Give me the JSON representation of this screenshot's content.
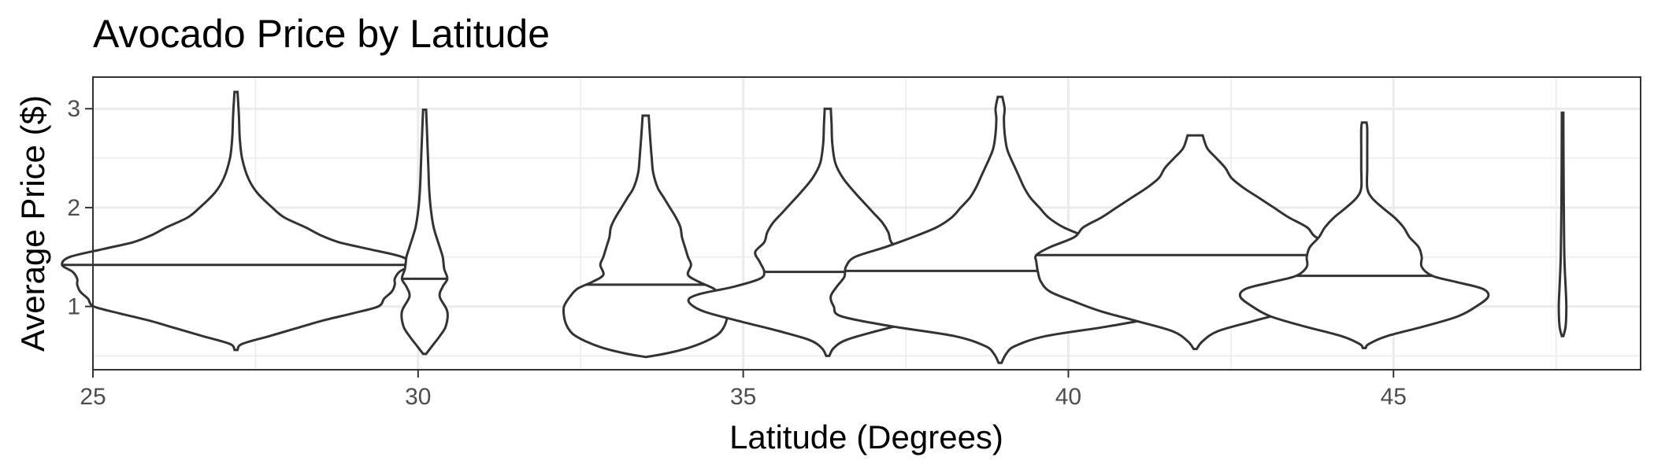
{
  "chart_data": {
    "type": "violin",
    "title": "Avocado Price by Latitude",
    "xlabel": "Latitude (Degrees)",
    "ylabel": "Average Price ($)",
    "xlim": [
      25,
      48.8
    ],
    "ylim": [
      0.36,
      3.32
    ],
    "x_ticks": [
      25,
      30,
      35,
      40,
      45
    ],
    "y_ticks": [
      1,
      2,
      3
    ],
    "grid": true,
    "line_color": "#333333",
    "violins": [
      {
        "latitude": 27.2,
        "median": 1.42,
        "min": 0.56,
        "max": 3.17,
        "profile": [
          [
            0.56,
            0.01
          ],
          [
            0.62,
            0.04
          ],
          [
            0.7,
            0.22
          ],
          [
            0.78,
            0.4
          ],
          [
            0.86,
            0.58
          ],
          [
            0.93,
            0.77
          ],
          [
            1.0,
            0.94
          ],
          [
            1.08,
            0.98
          ],
          [
            1.15,
            1.03
          ],
          [
            1.22,
            1.05
          ],
          [
            1.28,
            1.05
          ],
          [
            1.35,
            1.08
          ],
          [
            1.42,
            1.15
          ],
          [
            1.5,
            1.1
          ],
          [
            1.58,
            0.88
          ],
          [
            1.65,
            0.68
          ],
          [
            1.72,
            0.56
          ],
          [
            1.8,
            0.46
          ],
          [
            1.9,
            0.32
          ],
          [
            2.0,
            0.24
          ],
          [
            2.15,
            0.14
          ],
          [
            2.3,
            0.08
          ],
          [
            2.5,
            0.04
          ],
          [
            2.7,
            0.025
          ],
          [
            2.9,
            0.02
          ],
          [
            3.05,
            0.015
          ],
          [
            3.17,
            0.01
          ]
        ]
      },
      {
        "latitude": 30.1,
        "median": 1.28,
        "min": 0.52,
        "max": 2.99,
        "profile": [
          [
            0.52,
            0.01
          ],
          [
            0.6,
            0.05
          ],
          [
            0.7,
            0.1
          ],
          [
            0.8,
            0.14
          ],
          [
            0.95,
            0.15
          ],
          [
            1.1,
            0.1
          ],
          [
            1.2,
            0.12
          ],
          [
            1.28,
            0.15
          ],
          [
            1.38,
            0.13
          ],
          [
            1.5,
            0.12
          ],
          [
            1.6,
            0.1
          ],
          [
            1.8,
            0.06
          ],
          [
            2.0,
            0.04
          ],
          [
            2.2,
            0.03
          ],
          [
            2.4,
            0.025
          ],
          [
            2.6,
            0.02
          ],
          [
            2.8,
            0.015
          ],
          [
            2.99,
            0.01
          ]
        ]
      },
      {
        "latitude": 33.5,
        "median": 1.22,
        "min": 0.49,
        "max": 2.93,
        "profile": [
          [
            0.49,
            0.0
          ],
          [
            0.52,
            0.12
          ],
          [
            0.58,
            0.28
          ],
          [
            0.65,
            0.4
          ],
          [
            0.72,
            0.48
          ],
          [
            0.8,
            0.52
          ],
          [
            0.9,
            0.54
          ],
          [
            1.0,
            0.54
          ],
          [
            1.1,
            0.5
          ],
          [
            1.18,
            0.45
          ],
          [
            1.25,
            0.35
          ],
          [
            1.32,
            0.28
          ],
          [
            1.42,
            0.3
          ],
          [
            1.5,
            0.28
          ],
          [
            1.6,
            0.26
          ],
          [
            1.7,
            0.24
          ],
          [
            1.8,
            0.23
          ],
          [
            1.9,
            0.2
          ],
          [
            2.0,
            0.16
          ],
          [
            2.1,
            0.12
          ],
          [
            2.2,
            0.08
          ],
          [
            2.35,
            0.05
          ],
          [
            2.5,
            0.04
          ],
          [
            2.7,
            0.03
          ],
          [
            2.93,
            0.02
          ]
        ]
      },
      {
        "latitude": 36.3,
        "median": 1.35,
        "min": 0.5,
        "max": 3.0,
        "profile": [
          [
            0.5,
            0.01
          ],
          [
            0.58,
            0.04
          ],
          [
            0.66,
            0.12
          ],
          [
            0.75,
            0.32
          ],
          [
            0.85,
            0.58
          ],
          [
            0.95,
            0.82
          ],
          [
            1.05,
            0.92
          ],
          [
            1.12,
            0.86
          ],
          [
            1.2,
            0.62
          ],
          [
            1.28,
            0.45
          ],
          [
            1.35,
            0.42
          ],
          [
            1.45,
            0.45
          ],
          [
            1.55,
            0.48
          ],
          [
            1.65,
            0.42
          ],
          [
            1.75,
            0.4
          ],
          [
            1.85,
            0.36
          ],
          [
            1.95,
            0.3
          ],
          [
            2.05,
            0.24
          ],
          [
            2.15,
            0.18
          ],
          [
            2.3,
            0.1
          ],
          [
            2.45,
            0.05
          ],
          [
            2.65,
            0.03
          ],
          [
            2.85,
            0.025
          ],
          [
            3.0,
            0.02
          ]
        ]
      },
      {
        "latitude": 38.95,
        "median": 1.36,
        "min": 0.43,
        "max": 3.12,
        "profile": [
          [
            0.43,
            0.01
          ],
          [
            0.52,
            0.04
          ],
          [
            0.6,
            0.1
          ],
          [
            0.7,
            0.3
          ],
          [
            0.8,
            0.72
          ],
          [
            0.9,
            1.05
          ],
          [
            1.0,
            1.1
          ],
          [
            1.1,
            1.12
          ],
          [
            1.2,
            1.08
          ],
          [
            1.3,
            1.03
          ],
          [
            1.4,
            1.02
          ],
          [
            1.5,
            0.96
          ],
          [
            1.6,
            0.76
          ],
          [
            1.7,
            0.58
          ],
          [
            1.8,
            0.42
          ],
          [
            1.9,
            0.32
          ],
          [
            2.0,
            0.26
          ],
          [
            2.1,
            0.2
          ],
          [
            2.2,
            0.16
          ],
          [
            2.3,
            0.13
          ],
          [
            2.4,
            0.1
          ],
          [
            2.5,
            0.07
          ],
          [
            2.6,
            0.045
          ],
          [
            2.75,
            0.03
          ],
          [
            2.9,
            0.025
          ],
          [
            3.0,
            0.03
          ],
          [
            3.12,
            0.015
          ]
        ]
      },
      {
        "latitude": 41.95,
        "median": 1.52,
        "min": 0.57,
        "max": 2.73,
        "profile": [
          [
            0.57,
            0.01
          ],
          [
            0.65,
            0.05
          ],
          [
            0.75,
            0.15
          ],
          [
            0.85,
            0.38
          ],
          [
            0.95,
            0.62
          ],
          [
            1.05,
            0.8
          ],
          [
            1.15,
            0.96
          ],
          [
            1.25,
            1.02
          ],
          [
            1.35,
            1.04
          ],
          [
            1.45,
            1.05
          ],
          [
            1.52,
            1.05
          ],
          [
            1.6,
            0.96
          ],
          [
            1.7,
            0.8
          ],
          [
            1.8,
            0.74
          ],
          [
            1.9,
            0.62
          ],
          [
            2.0,
            0.52
          ],
          [
            2.1,
            0.42
          ],
          [
            2.2,
            0.32
          ],
          [
            2.3,
            0.24
          ],
          [
            2.4,
            0.2
          ],
          [
            2.5,
            0.14
          ],
          [
            2.6,
            0.08
          ],
          [
            2.73,
            0.05
          ]
        ]
      },
      {
        "latitude": 44.55,
        "median": 1.31,
        "min": 0.58,
        "max": 2.86,
        "profile": [
          [
            0.58,
            0.01
          ],
          [
            0.62,
            0.03
          ],
          [
            0.7,
            0.15
          ],
          [
            0.8,
            0.4
          ],
          [
            0.9,
            0.62
          ],
          [
            1.0,
            0.74
          ],
          [
            1.1,
            0.82
          ],
          [
            1.18,
            0.78
          ],
          [
            1.25,
            0.6
          ],
          [
            1.31,
            0.45
          ],
          [
            1.4,
            0.38
          ],
          [
            1.5,
            0.38
          ],
          [
            1.6,
            0.36
          ],
          [
            1.7,
            0.3
          ],
          [
            1.8,
            0.26
          ],
          [
            1.9,
            0.2
          ],
          [
            2.0,
            0.12
          ],
          [
            2.1,
            0.05
          ],
          [
            2.2,
            0.02
          ],
          [
            2.4,
            0.02
          ],
          [
            2.6,
            0.02
          ],
          [
            2.8,
            0.02
          ],
          [
            2.86,
            0.015
          ]
        ]
      },
      {
        "latitude": 47.6,
        "median": null,
        "min": 0.7,
        "max": 2.96,
        "profile": [
          [
            0.7,
            0.005
          ],
          [
            0.8,
            0.02
          ],
          [
            1.0,
            0.025
          ],
          [
            1.2,
            0.02
          ],
          [
            1.5,
            0.012
          ],
          [
            2.0,
            0.008
          ],
          [
            2.5,
            0.006
          ],
          [
            2.96,
            0.005
          ]
        ]
      }
    ]
  }
}
